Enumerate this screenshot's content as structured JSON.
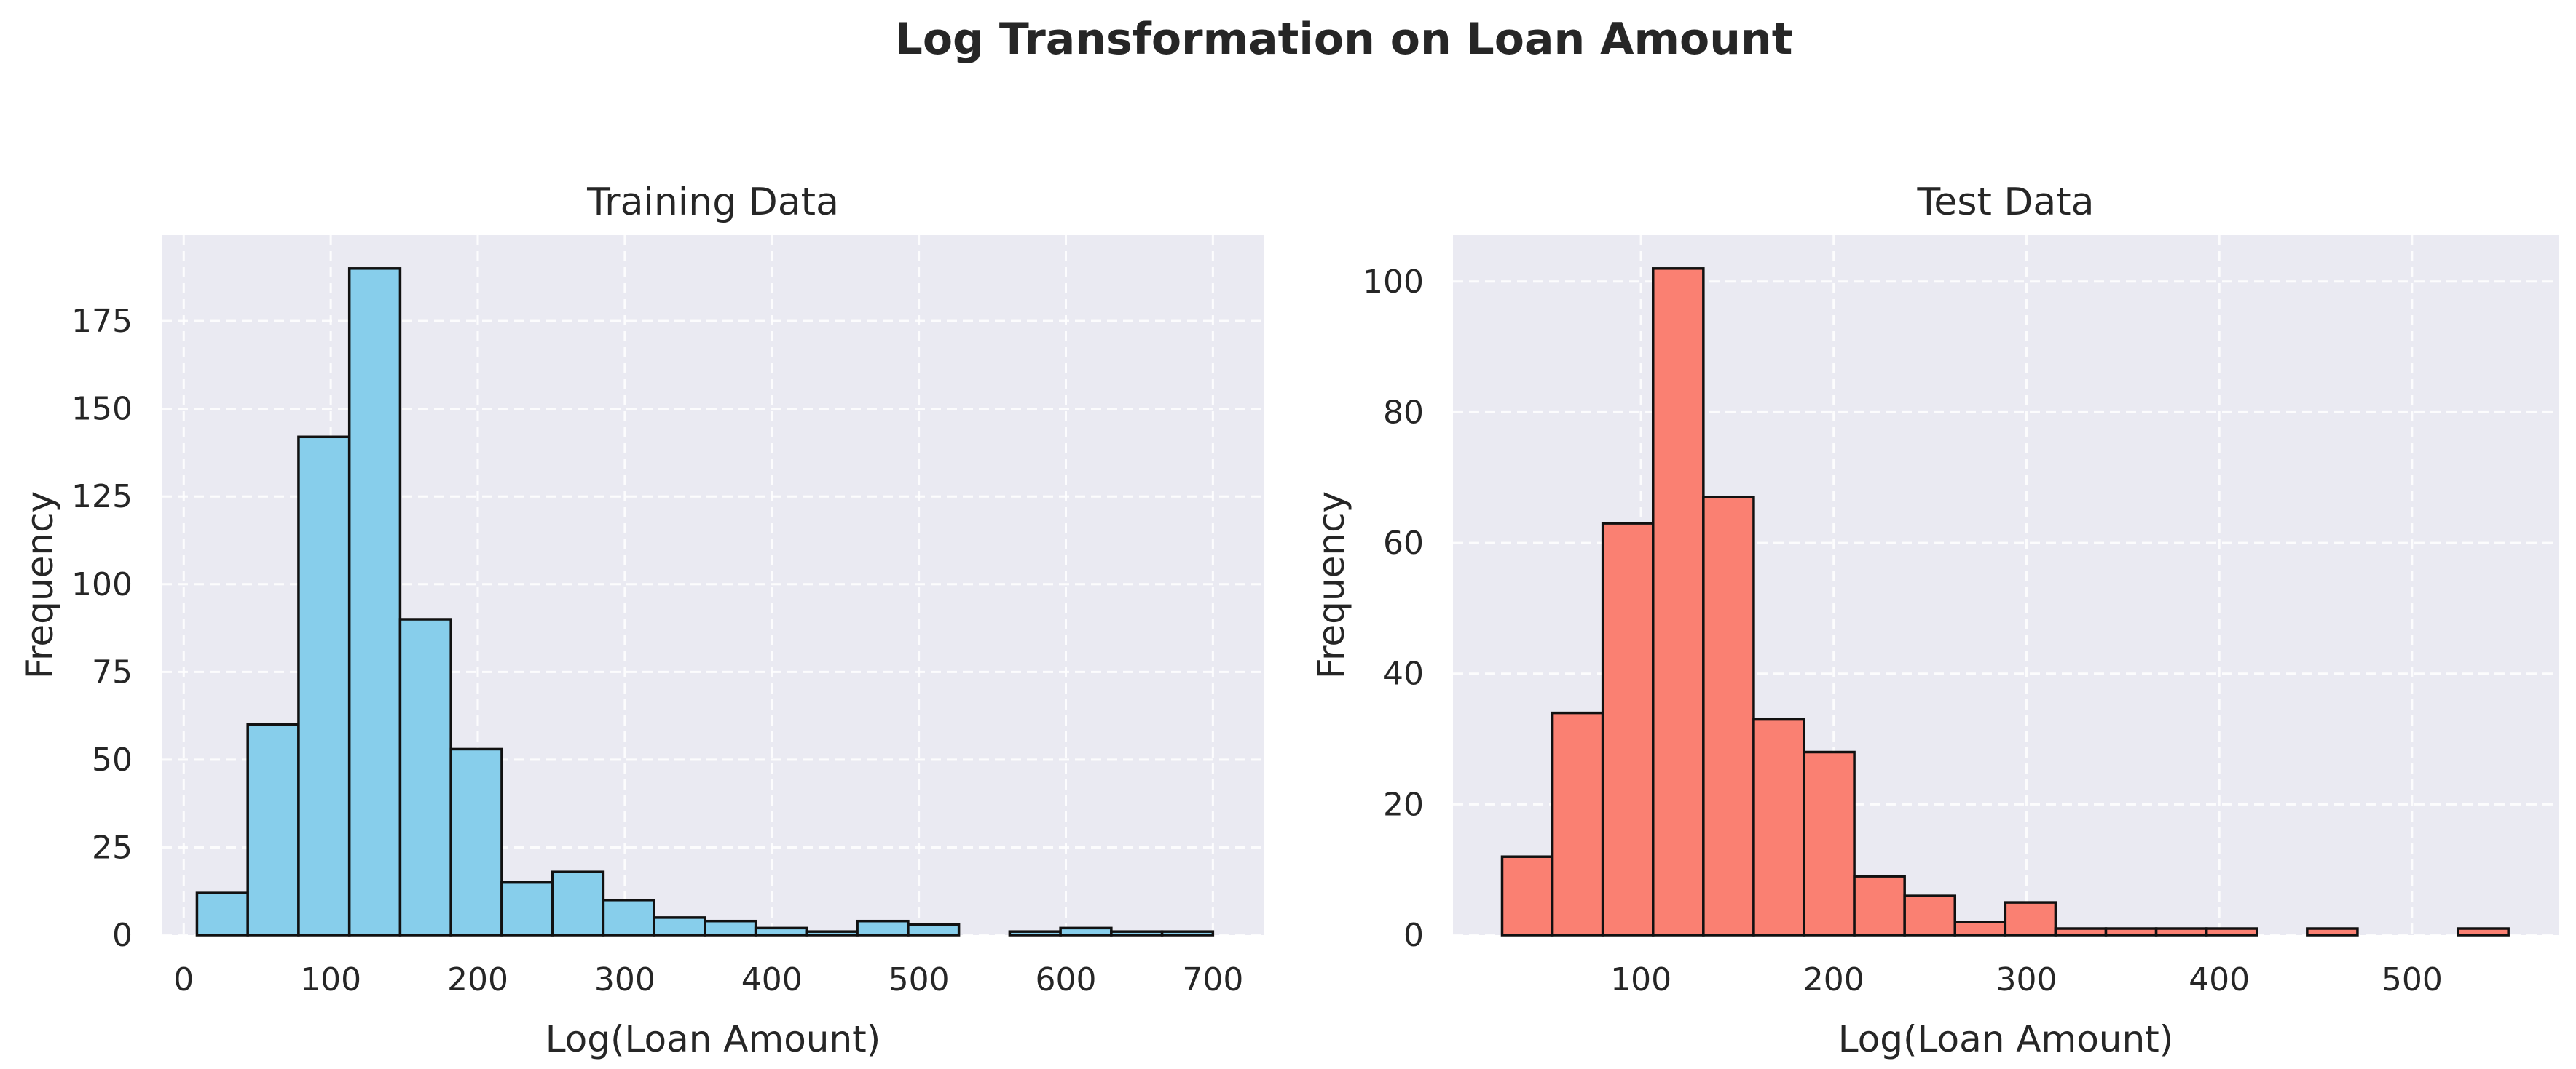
{
  "figure": {
    "suptitle": "Log Transformation on Loan Amount"
  },
  "chart_data": [
    {
      "type": "bar",
      "subtype": "histogram",
      "title": "Training Data",
      "xlabel": "Log(Loan Amount)",
      "ylabel": "Frequency",
      "color": "#87CEEB",
      "edge_color": "#111111",
      "xlim": [
        -15,
        735
      ],
      "ylim": [
        0,
        199.5
      ],
      "xticks": [
        0,
        100,
        200,
        300,
        400,
        500,
        600,
        700
      ],
      "yticks": [
        0,
        25,
        50,
        75,
        100,
        125,
        150,
        175
      ],
      "grid": true,
      "bins": [
        {
          "x0": 9,
          "x1": 43.55,
          "count": 12
        },
        {
          "x0": 43.55,
          "x1": 78.1,
          "count": 60
        },
        {
          "x0": 78.1,
          "x1": 112.65,
          "count": 142
        },
        {
          "x0": 112.65,
          "x1": 147.2,
          "count": 190
        },
        {
          "x0": 147.2,
          "x1": 181.75,
          "count": 90
        },
        {
          "x0": 181.75,
          "x1": 216.3,
          "count": 53
        },
        {
          "x0": 216.3,
          "x1": 250.85,
          "count": 15
        },
        {
          "x0": 250.85,
          "x1": 285.4,
          "count": 18
        },
        {
          "x0": 285.4,
          "x1": 319.95,
          "count": 10
        },
        {
          "x0": 319.95,
          "x1": 354.5,
          "count": 5
        },
        {
          "x0": 354.5,
          "x1": 389.05,
          "count": 4
        },
        {
          "x0": 389.05,
          "x1": 423.6,
          "count": 2
        },
        {
          "x0": 423.6,
          "x1": 458.15,
          "count": 1
        },
        {
          "x0": 458.15,
          "x1": 492.7,
          "count": 4
        },
        {
          "x0": 492.7,
          "x1": 527.25,
          "count": 3
        },
        {
          "x0": 527.25,
          "x1": 561.8,
          "count": 0
        },
        {
          "x0": 561.8,
          "x1": 596.35,
          "count": 1
        },
        {
          "x0": 596.35,
          "x1": 630.9,
          "count": 2
        },
        {
          "x0": 630.9,
          "x1": 665.45,
          "count": 1
        },
        {
          "x0": 665.45,
          "x1": 700,
          "count": 1
        }
      ]
    },
    {
      "type": "bar",
      "subtype": "histogram",
      "title": "Test Data",
      "xlabel": "Log(Loan Amount)",
      "ylabel": "Frequency",
      "color": "#FA8072",
      "edge_color": "#111111",
      "xlim": [
        2.5,
        576
      ],
      "ylim": [
        0,
        107.1
      ],
      "xticks": [
        100,
        200,
        300,
        400,
        500
      ],
      "yticks": [
        0,
        20,
        40,
        60,
        80,
        100
      ],
      "grid": true,
      "bins": [
        {
          "x0": 28,
          "x1": 54.1,
          "count": 12
        },
        {
          "x0": 54.1,
          "x1": 80.2,
          "count": 34
        },
        {
          "x0": 80.2,
          "x1": 106.3,
          "count": 63
        },
        {
          "x0": 106.3,
          "x1": 132.4,
          "count": 102
        },
        {
          "x0": 132.4,
          "x1": 158.5,
          "count": 67
        },
        {
          "x0": 158.5,
          "x1": 184.6,
          "count": 33
        },
        {
          "x0": 184.6,
          "x1": 210.7,
          "count": 28
        },
        {
          "x0": 210.7,
          "x1": 236.8,
          "count": 9
        },
        {
          "x0": 236.8,
          "x1": 262.9,
          "count": 6
        },
        {
          "x0": 262.9,
          "x1": 289,
          "count": 2
        },
        {
          "x0": 289,
          "x1": 315.1,
          "count": 5
        },
        {
          "x0": 315.1,
          "x1": 341.2,
          "count": 1
        },
        {
          "x0": 341.2,
          "x1": 367.3,
          "count": 1
        },
        {
          "x0": 367.3,
          "x1": 393.4,
          "count": 1
        },
        {
          "x0": 393.4,
          "x1": 419.5,
          "count": 1
        },
        {
          "x0": 419.5,
          "x1": 445.6,
          "count": 0
        },
        {
          "x0": 445.6,
          "x1": 471.7,
          "count": 1
        },
        {
          "x0": 471.7,
          "x1": 497.8,
          "count": 0
        },
        {
          "x0": 497.8,
          "x1": 523.9,
          "count": 0
        },
        {
          "x0": 523.9,
          "x1": 550,
          "count": 1
        }
      ]
    }
  ]
}
